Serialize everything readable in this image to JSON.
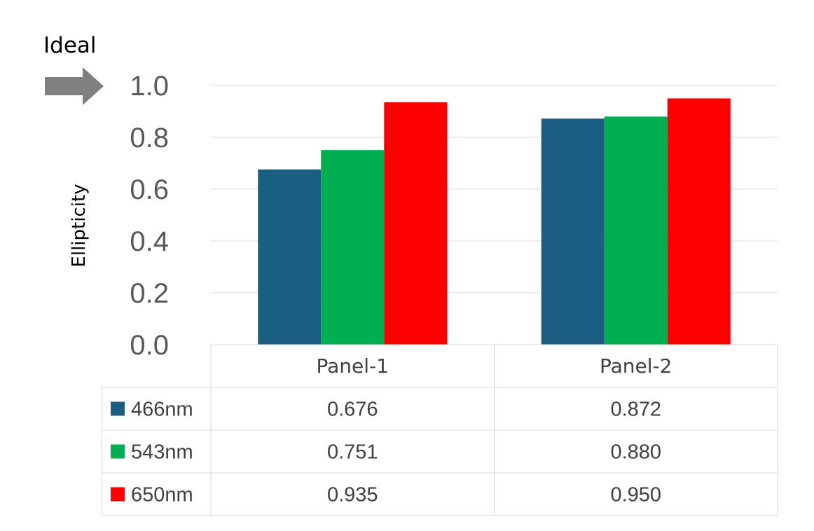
{
  "chart_data": {
    "type": "bar",
    "categories": [
      "Panel-1",
      "Panel-2"
    ],
    "series": [
      {
        "name": "466nm",
        "values": [
          0.676,
          0.872
        ],
        "color": "#1a5e82"
      },
      {
        "name": "543nm",
        "values": [
          0.751,
          0.88
        ],
        "color": "#00b050"
      },
      {
        "name": "650nm",
        "values": [
          0.935,
          0.95
        ],
        "color": "#ff0000"
      }
    ],
    "ylabel": "Ellipticity",
    "ylim": [
      0,
      1.0
    ],
    "yticks": [
      "0.0",
      "0.2",
      "0.4",
      "0.6",
      "0.8",
      "1.0"
    ],
    "grid": true,
    "legend": "data-table",
    "data_table": {
      "rows": [
        {
          "label": "466nm",
          "cells": [
            "0.676",
            "0.872"
          ]
        },
        {
          "label": "543nm",
          "cells": [
            "0.751",
            "0.880"
          ]
        },
        {
          "label": "650nm",
          "cells": [
            "0.935",
            "0.950"
          ]
        }
      ]
    },
    "annotation": {
      "text": "Ideal",
      "points_to": 1.0,
      "arrow_color": "#808080"
    }
  }
}
